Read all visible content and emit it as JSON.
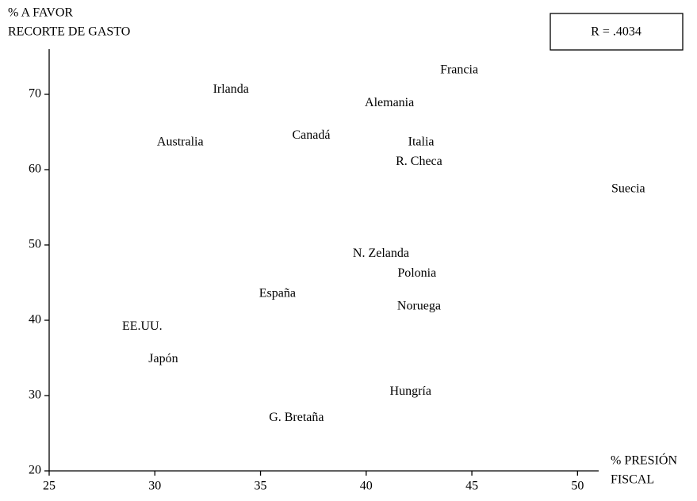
{
  "chart_data": {
    "type": "scatter",
    "ylabel": [
      "% A FAVOR",
      "RECORTE DE GASTO"
    ],
    "xlabel": [
      "% PRESIÓN",
      "FISCAL"
    ],
    "annotation": "R = .4034",
    "labels": [
      "Francia",
      "Irlanda",
      "Alemania",
      "Australia",
      "Canadá",
      "Italia",
      "R. Checa",
      "Suecia",
      "N. Zelanda",
      "Polonia",
      "España",
      "Noruega",
      "EE.UU.",
      "Japón",
      "Hungría",
      "G. Bretaña"
    ],
    "x": [
      44.4,
      33.6,
      41.1,
      31.2,
      37.4,
      42.6,
      42.5,
      52.4,
      40.7,
      42.4,
      35.8,
      42.5,
      29.4,
      30.4,
      42.1,
      36.7
    ],
    "y": [
      73.2,
      70.6,
      68.8,
      63.6,
      64.5,
      63.6,
      61.0,
      57.4,
      48.8,
      46.2,
      43.5,
      41.8,
      39.1,
      34.8,
      30.5,
      27.0
    ],
    "color": "#000000",
    "xlim": [
      25,
      51
    ],
    "xticks": [
      25,
      30,
      35,
      40,
      45,
      50
    ],
    "ylim": [
      20,
      76
    ],
    "yticks": [
      20,
      30,
      40,
      50,
      60,
      70
    ],
    "grid": false
  }
}
